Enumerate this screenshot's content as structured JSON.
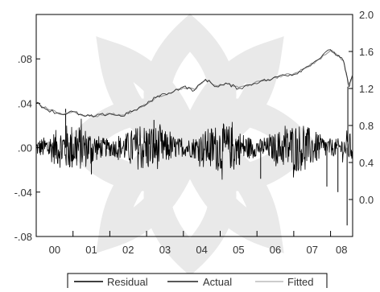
{
  "chart_data": {
    "type": "line",
    "title": "",
    "xlabel": "",
    "ylabel_left": "",
    "ylabel_right": "",
    "x_categories": [
      "00",
      "01",
      "02",
      "03",
      "04",
      "05",
      "06",
      "07",
      "08"
    ],
    "xlim": [
      2000.0,
      2008.6
    ],
    "left_axis": {
      "ylim": [
        -0.08,
        0.12
      ],
      "ticks": [
        0.08,
        0.04,
        0.0,
        -0.04,
        -0.08
      ],
      "tick_labels": [
        ".08",
        ".04",
        ".00",
        "-.04",
        "-.08"
      ]
    },
    "right_axis": {
      "ylim": [
        -0.4,
        2.0
      ],
      "ticks": [
        2.0,
        1.6,
        1.2,
        0.8,
        0.4,
        0.0
      ],
      "tick_labels": [
        "2.0",
        "1.6",
        "1.2",
        "0.8",
        "0.4",
        "0.0"
      ]
    },
    "grid": false,
    "legend_position": "bottom",
    "series": [
      {
        "name": "Residual",
        "axis": "left",
        "style": "dense-noise",
        "typical_range": [
          -0.02,
          0.02
        ],
        "spikes": [
          {
            "x": 2000.8,
            "y": 0.035
          },
          {
            "x": 2001.5,
            "y": -0.024
          },
          {
            "x": 2003.2,
            "y": 0.025
          },
          {
            "x": 2006.1,
            "y": -0.028
          },
          {
            "x": 2007.9,
            "y": -0.035
          },
          {
            "x": 2008.2,
            "y": -0.04
          },
          {
            "x": 2008.45,
            "y": -0.07
          },
          {
            "x": 2008.47,
            "y": 0.055
          }
        ]
      },
      {
        "name": "Actual",
        "axis": "right",
        "x": [
          2000.0,
          2000.3,
          2000.7,
          2001.0,
          2001.3,
          2001.6,
          2002.0,
          2002.3,
          2002.6,
          2003.0,
          2003.3,
          2003.6,
          2004.0,
          2004.3,
          2004.6,
          2004.9,
          2005.2,
          2005.5,
          2005.8,
          2006.1,
          2006.4,
          2006.7,
          2007.0,
          2007.3,
          2007.6,
          2008.0,
          2008.2,
          2008.35,
          2008.5,
          2008.6
        ],
        "y": [
          1.05,
          0.97,
          0.92,
          0.95,
          0.9,
          0.9,
          0.93,
          0.9,
          0.95,
          1.03,
          1.12,
          1.15,
          1.22,
          1.18,
          1.3,
          1.22,
          1.25,
          1.2,
          1.24,
          1.28,
          1.3,
          1.35,
          1.35,
          1.42,
          1.5,
          1.62,
          1.55,
          1.5,
          1.22,
          1.35
        ]
      },
      {
        "name": "Fitted",
        "axis": "right",
        "x": [
          2000.0,
          2000.3,
          2000.7,
          2001.0,
          2001.3,
          2001.6,
          2002.0,
          2002.3,
          2002.6,
          2003.0,
          2003.3,
          2003.6,
          2004.0,
          2004.3,
          2004.6,
          2004.9,
          2005.2,
          2005.5,
          2005.8,
          2006.1,
          2006.4,
          2006.7,
          2007.0,
          2007.3,
          2007.6,
          2008.0,
          2008.2,
          2008.35,
          2008.5,
          2008.6
        ],
        "y": [
          1.05,
          0.98,
          0.92,
          0.95,
          0.91,
          0.9,
          0.93,
          0.91,
          0.95,
          1.03,
          1.11,
          1.15,
          1.21,
          1.19,
          1.29,
          1.23,
          1.25,
          1.21,
          1.24,
          1.28,
          1.3,
          1.34,
          1.36,
          1.42,
          1.49,
          1.61,
          1.56,
          1.5,
          1.24,
          1.34
        ]
      }
    ],
    "colors": {
      "residual": "#000000",
      "actual": "#222222",
      "fitted": "#9a9a9a"
    }
  },
  "legend": {
    "residual_label": "Residual",
    "actual_label": "Actual",
    "fitted_label": "Fitted"
  }
}
